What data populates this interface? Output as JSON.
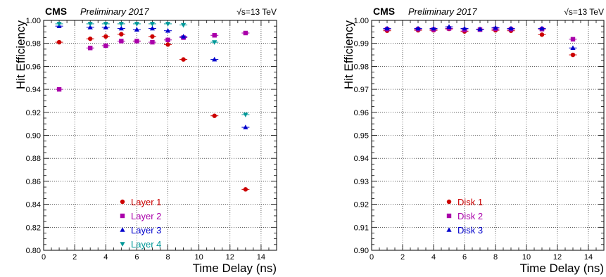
{
  "chart_data": [
    {
      "type": "scatter",
      "experiment": "CMS",
      "status": "Preliminary 2017",
      "energy": "√s=13 TeV",
      "xlabel": "Time Delay (ns)",
      "ylabel": "Hit Efficiency",
      "xlim": [
        0,
        15
      ],
      "ylim": [
        0.8,
        1.0
      ],
      "xticks": [
        "0",
        "2",
        "4",
        "6",
        "8",
        "10",
        "12",
        "14"
      ],
      "yticks": [
        "0.80",
        "0.82",
        "0.84",
        "0.86",
        "0.88",
        "0.90",
        "0.92",
        "0.94",
        "0.96",
        "0.98",
        "1.00"
      ],
      "grid": true,
      "legend_position": "bottom-center",
      "series": [
        {
          "name": "Layer 1",
          "color": "#cc0000",
          "marker": "circle",
          "x": [
            1,
            3,
            4,
            5,
            6,
            7,
            8,
            9,
            11,
            13
          ],
          "y": [
            0.981,
            0.984,
            0.986,
            0.988,
            0.982,
            0.986,
            0.979,
            0.966,
            0.917,
            0.853
          ]
        },
        {
          "name": "Layer 2",
          "color": "#aa00aa",
          "marker": "square",
          "x": [
            1,
            3,
            4,
            5,
            6,
            7,
            8,
            9,
            11,
            13
          ],
          "y": [
            0.94,
            0.976,
            0.978,
            0.982,
            0.982,
            0.981,
            0.983,
            0.985,
            0.987,
            0.989
          ]
        },
        {
          "name": "Layer 3",
          "color": "#0000cc",
          "marker": "triangle-up",
          "x": [
            1,
            3,
            4,
            5,
            6,
            7,
            8,
            9,
            11,
            13
          ],
          "y": [
            0.995,
            0.994,
            0.994,
            0.993,
            0.992,
            0.993,
            0.991,
            0.986,
            0.966,
            0.907
          ]
        },
        {
          "name": "Layer 4",
          "color": "#009999",
          "marker": "triangle-down",
          "x": [
            1,
            3,
            4,
            5,
            6,
            7,
            8,
            9,
            11,
            13
          ],
          "y": [
            0.997,
            0.997,
            0.997,
            0.997,
            0.997,
            0.997,
            0.997,
            0.996,
            0.981,
            0.918
          ]
        }
      ]
    },
    {
      "type": "scatter",
      "experiment": "CMS",
      "status": "Preliminary 2017",
      "energy": "√s=13 TeV",
      "xlabel": "Time Delay (ns)",
      "ylabel": "Hit Efficiency",
      "xlim": [
        0,
        15
      ],
      "ylim": [
        0.9,
        1.0
      ],
      "xticks": [
        "0",
        "2",
        "4",
        "6",
        "8",
        "10",
        "12",
        "14"
      ],
      "yticks": [
        "0.90",
        "0.91",
        "0.92",
        "0.93",
        "0.94",
        "0.95",
        "0.96",
        "0.97",
        "0.98",
        "0.99",
        "1.00"
      ],
      "grid": true,
      "legend_position": "bottom-center",
      "series": [
        {
          "name": "Disk 1",
          "color": "#cc0000",
          "marker": "circle",
          "x": [
            1,
            3,
            4,
            5,
            6,
            7,
            8,
            9,
            11,
            13
          ],
          "y": [
            0.9955,
            0.9957,
            0.9957,
            0.9963,
            0.9952,
            0.996,
            0.9957,
            0.9955,
            0.9938,
            0.985
          ]
        },
        {
          "name": "Disk 2",
          "color": "#aa00aa",
          "marker": "square",
          "x": [
            1,
            3,
            4,
            5,
            6,
            7,
            8,
            9,
            11,
            13
          ],
          "y": [
            0.9962,
            0.9962,
            0.996,
            0.9965,
            0.9958,
            0.996,
            0.9963,
            0.9962,
            0.9962,
            0.9918
          ]
        },
        {
          "name": "Disk 3",
          "color": "#0000cc",
          "marker": "triangle-up",
          "x": [
            1,
            3,
            4,
            5,
            6,
            7,
            8,
            9,
            11,
            13
          ],
          "y": [
            0.9965,
            0.9965,
            0.9965,
            0.9972,
            0.9965,
            0.9962,
            0.9968,
            0.9965,
            0.9965,
            0.988
          ]
        }
      ]
    }
  ]
}
